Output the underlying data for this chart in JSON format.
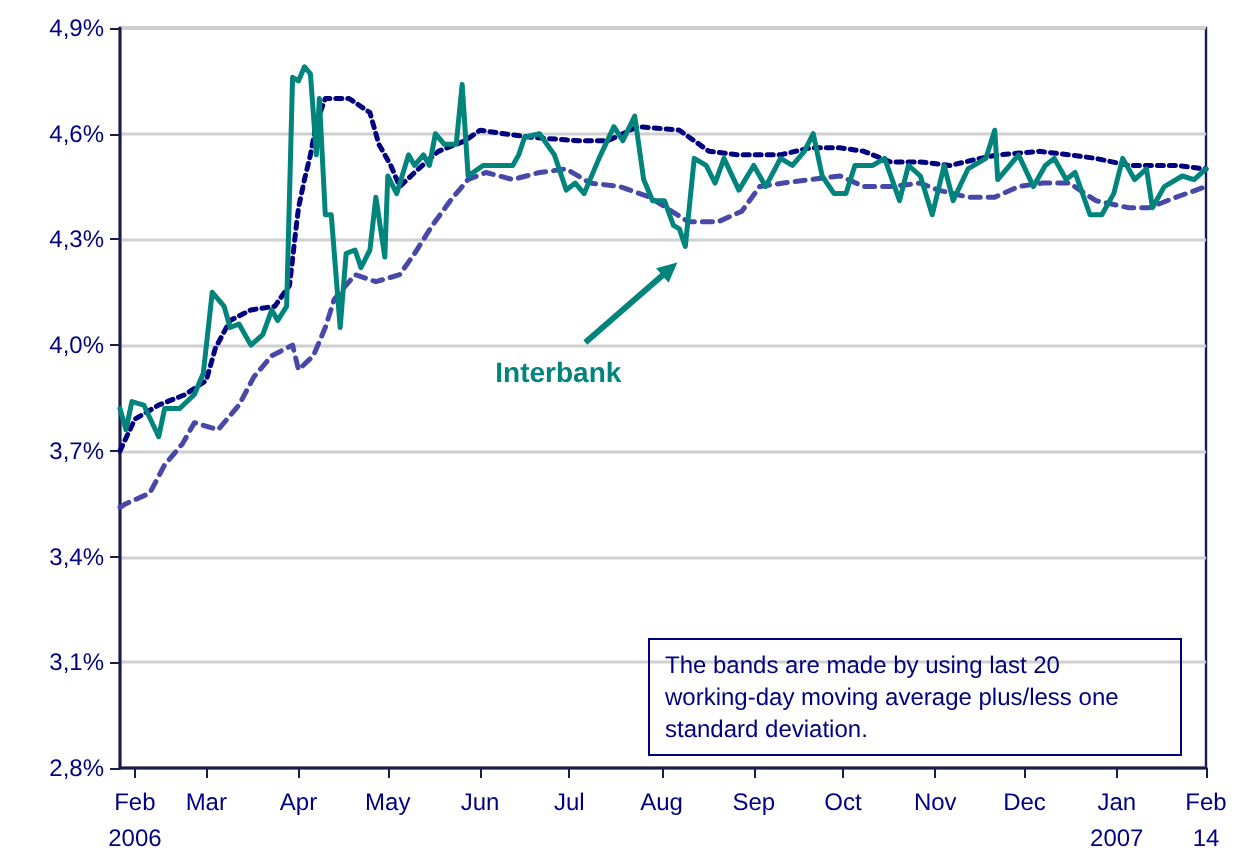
{
  "chart_data": {
    "type": "line",
    "xlim": [
      "2006-02-14",
      "2007-02-14"
    ],
    "xticks": [
      {
        "value": "2006-02-19",
        "label": "Feb\n2006"
      },
      {
        "value": "2006-03-15",
        "label": "Mar"
      },
      {
        "value": "2006-04-15",
        "label": "Apr"
      },
      {
        "value": "2006-05-15",
        "label": "May"
      },
      {
        "value": "2006-06-15",
        "label": "Jun"
      },
      {
        "value": "2006-07-15",
        "label": "Jul"
      },
      {
        "value": "2006-08-15",
        "label": "Aug"
      },
      {
        "value": "2006-09-15",
        "label": "Sep"
      },
      {
        "value": "2006-10-15",
        "label": "Oct"
      },
      {
        "value": "2006-11-15",
        "label": "Nov"
      },
      {
        "value": "2006-12-15",
        "label": "Dec"
      },
      {
        "value": "2007-01-15",
        "label": "Jan\n2007"
      },
      {
        "value": "2007-02-14",
        "label": "Feb\n14"
      }
    ],
    "ylim": [
      2.8,
      4.9
    ],
    "yticks": [
      {
        "value": 2.8,
        "label": "2,8%"
      },
      {
        "value": 3.1,
        "label": "3,1%"
      },
      {
        "value": 3.4,
        "label": "3,4%"
      },
      {
        "value": 3.7,
        "label": "3,7%"
      },
      {
        "value": 4.0,
        "label": "4,0%"
      },
      {
        "value": 4.3,
        "label": "4,3%"
      },
      {
        "value": 4.6,
        "label": "4,6%"
      },
      {
        "value": 4.9,
        "label": "4,9%"
      }
    ],
    "grid": "y",
    "marker": "none",
    "annotations": [
      "The bands are made by using last 20 working-day moving average plus/less one standard deviation."
    ],
    "series": [
      {
        "color": "#000080",
        "line_style": "dotted",
        "x": [
          "2006-02-14",
          "2006-02-19",
          "2006-02-27",
          "2006-03-08",
          "2006-03-15",
          "2006-03-18",
          "2006-03-23",
          "2006-03-30",
          "2006-04-07",
          "2006-04-12",
          "2006-04-14",
          "2006-04-15",
          "2006-04-17",
          "2006-04-19",
          "2006-04-21",
          "2006-04-24",
          "2006-05-02",
          "2006-05-09",
          "2006-05-12",
          "2006-05-16",
          "2006-05-19",
          "2006-05-24",
          "2006-06-01",
          "2006-06-10",
          "2006-06-15",
          "2006-06-23",
          "2006-07-02",
          "2006-07-18",
          "2006-07-28",
          "2006-08-07",
          "2006-08-21",
          "2006-08-31",
          "2006-09-10",
          "2006-09-24",
          "2006-10-04",
          "2006-10-14",
          "2006-10-22",
          "2006-10-31",
          "2006-11-10",
          "2006-11-20",
          "2006-11-30",
          "2006-12-06",
          "2006-12-20",
          "2006-12-30",
          "2007-01-08",
          "2007-01-19",
          "2007-01-26",
          "2007-02-04",
          "2007-02-14"
        ],
        "values": [
          3.7,
          3.79,
          3.83,
          3.86,
          3.9,
          3.99,
          4.07,
          4.1,
          4.11,
          4.17,
          4.32,
          4.39,
          4.47,
          4.54,
          4.63,
          4.7,
          4.7,
          4.66,
          4.57,
          4.51,
          4.45,
          4.49,
          4.55,
          4.58,
          4.61,
          4.6,
          4.59,
          4.58,
          4.58,
          4.62,
          4.61,
          4.55,
          4.54,
          4.54,
          4.56,
          4.56,
          4.55,
          4.52,
          4.52,
          4.51,
          4.53,
          4.54,
          4.55,
          4.54,
          4.53,
          4.51,
          4.51,
          4.51,
          4.5
        ]
      },
      {
        "color": "#4848a8",
        "line_style": "dashed",
        "x": [
          "2006-02-14",
          "2006-02-16",
          "2006-02-24",
          "2006-03-01",
          "2006-03-07",
          "2006-03-11",
          "2006-03-19",
          "2006-03-26",
          "2006-03-31",
          "2006-04-06",
          "2006-04-13",
          "2006-04-15",
          "2006-04-20",
          "2006-04-24",
          "2006-04-27",
          "2006-05-04",
          "2006-05-11",
          "2006-05-19",
          "2006-05-24",
          "2006-05-30",
          "2006-06-05",
          "2006-06-11",
          "2006-06-17",
          "2006-06-26",
          "2006-07-05",
          "2006-07-14",
          "2006-07-22",
          "2006-08-01",
          "2006-08-11",
          "2006-08-24",
          "2006-09-03",
          "2006-09-11",
          "2006-09-17",
          "2006-09-25",
          "2006-10-04",
          "2006-10-14",
          "2006-10-22",
          "2006-10-31",
          "2006-11-10",
          "2006-11-16",
          "2006-11-26",
          "2006-12-05",
          "2006-12-13",
          "2006-12-21",
          "2006-12-30",
          "2007-01-08",
          "2007-01-19",
          "2007-01-26",
          "2007-02-04",
          "2007-02-14"
        ],
        "values": [
          3.54,
          3.55,
          3.58,
          3.66,
          3.72,
          3.78,
          3.76,
          3.83,
          3.91,
          3.97,
          4.0,
          3.93,
          3.97,
          4.05,
          4.13,
          4.2,
          4.18,
          4.2,
          4.26,
          4.34,
          4.41,
          4.47,
          4.49,
          4.47,
          4.49,
          4.5,
          4.46,
          4.45,
          4.42,
          4.35,
          4.35,
          4.38,
          4.45,
          4.46,
          4.47,
          4.48,
          4.45,
          4.45,
          4.46,
          4.44,
          4.42,
          4.42,
          4.45,
          4.46,
          4.46,
          4.41,
          4.39,
          4.39,
          4.42,
          4.45
        ]
      },
      {
        "name": "Interbank",
        "color": "#00847c",
        "line_style": "solid",
        "x": [
          "2006-02-14",
          "2006-02-16",
          "2006-02-18",
          "2006-02-22",
          "2006-02-27",
          "2006-03-01",
          "2006-03-06",
          "2006-03-11",
          "2006-03-14",
          "2006-03-17",
          "2006-03-21",
          "2006-03-23",
          "2006-03-26",
          "2006-03-30",
          "2006-04-03",
          "2006-04-06",
          "2006-04-08",
          "2006-04-11",
          "2006-04-13",
          "2006-04-15",
          "2006-04-17",
          "2006-04-19",
          "2006-04-21",
          "2006-04-22",
          "2006-04-24",
          "2006-04-26",
          "2006-04-29",
          "2006-05-01",
          "2006-05-04",
          "2006-05-06",
          "2006-05-09",
          "2006-05-11",
          "2006-05-14",
          "2006-05-15",
          "2006-05-18",
          "2006-05-22",
          "2006-05-24",
          "2006-05-27",
          "2006-05-29",
          "2006-05-31",
          "2006-06-03",
          "2006-06-07",
          "2006-06-09",
          "2006-06-11",
          "2006-06-16",
          "2006-06-21",
          "2006-06-26",
          "2006-06-28",
          "2006-06-30",
          "2006-07-05",
          "2006-07-10",
          "2006-07-14",
          "2006-07-17",
          "2006-07-20",
          "2006-07-25",
          "2006-07-30",
          "2006-08-02",
          "2006-08-06",
          "2006-08-09",
          "2006-08-12",
          "2006-08-16",
          "2006-08-19",
          "2006-08-21",
          "2006-08-23",
          "2006-08-26",
          "2006-08-30",
          "2006-09-02",
          "2006-09-05",
          "2006-09-10",
          "2006-09-15",
          "2006-09-19",
          "2006-09-24",
          "2006-09-28",
          "2006-10-02",
          "2006-10-05",
          "2006-10-08",
          "2006-10-12",
          "2006-10-16",
          "2006-10-19",
          "2006-10-25",
          "2006-10-29",
          "2006-11-03",
          "2006-11-06",
          "2006-11-10",
          "2006-11-14",
          "2006-11-18",
          "2006-11-21",
          "2006-11-26",
          "2006-12-02",
          "2006-12-05",
          "2006-12-06",
          "2006-12-13",
          "2006-12-18",
          "2006-12-22",
          "2006-12-25",
          "2006-12-29",
          "2007-01-01",
          "2007-01-06",
          "2007-01-10",
          "2007-01-14",
          "2007-01-17",
          "2007-01-21",
          "2007-01-25",
          "2007-01-27",
          "2007-01-31",
          "2007-02-06",
          "2007-02-10",
          "2007-02-14"
        ],
        "values": [
          3.82,
          3.76,
          3.84,
          3.83,
          3.74,
          3.82,
          3.82,
          3.86,
          3.92,
          4.15,
          4.11,
          4.05,
          4.06,
          4.0,
          4.03,
          4.1,
          4.07,
          4.11,
          4.76,
          4.75,
          4.79,
          4.77,
          4.54,
          4.7,
          4.37,
          4.37,
          4.05,
          4.26,
          4.27,
          4.22,
          4.27,
          4.42,
          4.25,
          4.48,
          4.43,
          4.54,
          4.51,
          4.54,
          4.51,
          4.6,
          4.57,
          4.57,
          4.74,
          4.48,
          4.51,
          4.51,
          4.51,
          4.54,
          4.59,
          4.6,
          4.54,
          4.44,
          4.46,
          4.43,
          4.53,
          4.62,
          4.58,
          4.65,
          4.47,
          4.41,
          4.41,
          4.34,
          4.33,
          4.28,
          4.53,
          4.51,
          4.46,
          4.53,
          4.44,
          4.51,
          4.45,
          4.53,
          4.51,
          4.55,
          4.6,
          4.48,
          4.43,
          4.43,
          4.51,
          4.51,
          4.53,
          4.41,
          4.51,
          4.48,
          4.37,
          4.51,
          4.41,
          4.5,
          4.53,
          4.61,
          4.47,
          4.54,
          4.45,
          4.51,
          4.53,
          4.47,
          4.49,
          4.37,
          4.37,
          4.43,
          4.53,
          4.47,
          4.5,
          4.39,
          4.45,
          4.48,
          4.47,
          4.5
        ]
      }
    ]
  }
}
